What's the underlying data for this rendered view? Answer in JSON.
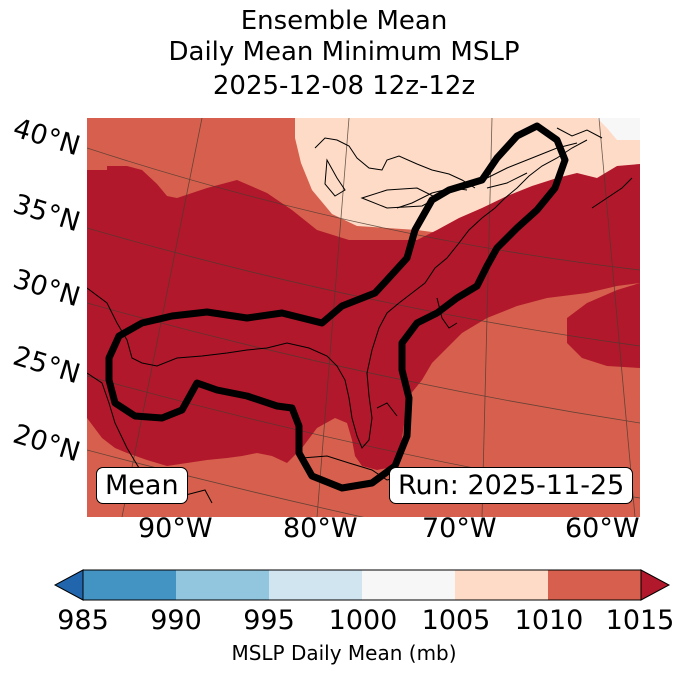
{
  "title": {
    "line1": "Ensemble Mean",
    "line2": "Daily Mean Minimum MSLP",
    "line3": "2025-12-08 12z-12z"
  },
  "map": {
    "lat_labels": [
      "40°N",
      "35°N",
      "30°N",
      "25°N",
      "20°N"
    ],
    "lon_labels": [
      "90°W",
      "80°W",
      "70°W",
      "60°W"
    ],
    "left_box": "Mean",
    "right_box": "Run: 2025-11-25",
    "contour_color": "#000000"
  },
  "colorbar": {
    "ticks": [
      "985",
      "990",
      "995",
      "1000",
      "1005",
      "1010",
      "1015"
    ],
    "label": "MSLP Daily Mean (mb)",
    "colors": [
      "#2166ac",
      "#4393c3",
      "#92c5de",
      "#d1e5f0",
      "#f7f7f7",
      "#fddbc7",
      "#d6604d",
      "#b2182b"
    ],
    "extend": "both"
  }
}
